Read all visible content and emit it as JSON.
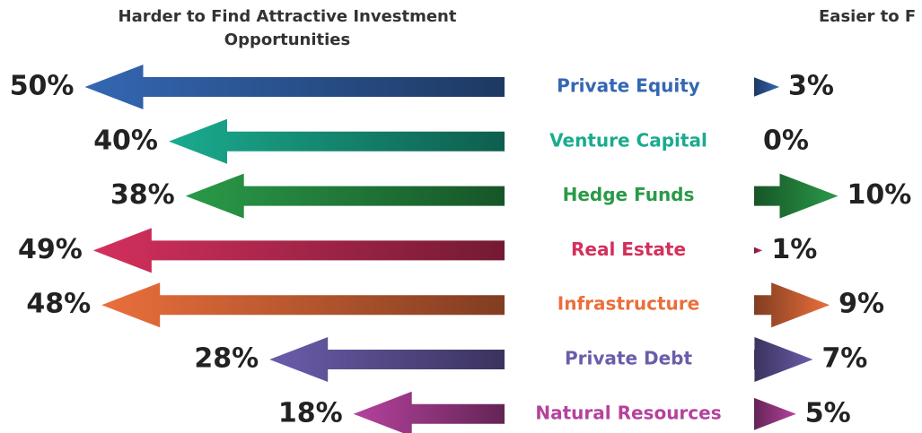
{
  "chart_data": {
    "type": "diverging_arrow",
    "left_header": "Harder to Find Attractive Investment Opportunities",
    "right_header": "Easier to F",
    "categories": [
      "Private Equity",
      "Venture Capital",
      "Hedge Funds",
      "Real Estate",
      "Infrastructure",
      "Private Debt",
      "Natural Resources"
    ],
    "colors": [
      "#3467b3",
      "#1aab8e",
      "#2a9a48",
      "#d3305c",
      "#ea6f3c",
      "#6b5caa",
      "#b5429d"
    ],
    "series": [
      {
        "name": "Harder",
        "values": [
          50,
          40,
          38,
          49,
          48,
          28,
          18
        ],
        "value_labels": [
          "50%",
          "40%",
          "38%",
          "49%",
          "48%",
          "28%",
          "18%"
        ]
      },
      {
        "name": "Easier",
        "values": [
          3,
          0,
          10,
          1,
          9,
          7,
          5
        ],
        "value_labels": [
          "3%",
          "0%",
          "10%",
          "1%",
          "9%",
          "7%",
          "5%"
        ]
      }
    ]
  }
}
